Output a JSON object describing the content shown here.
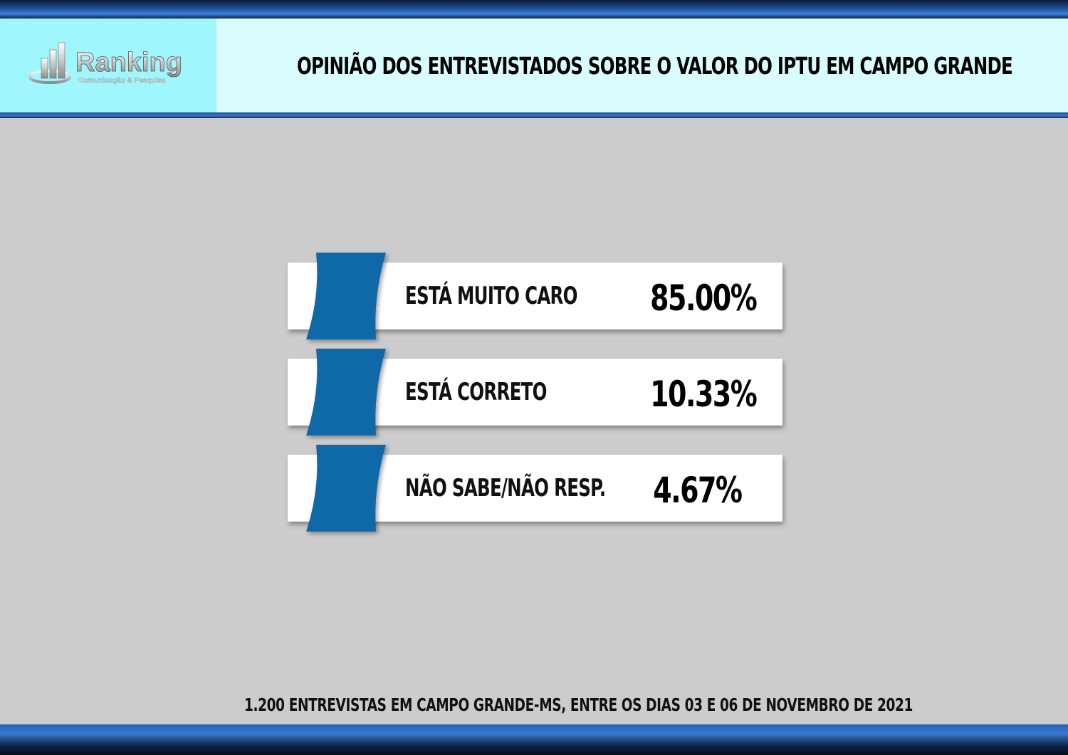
{
  "header": {
    "logo_text": "Ranking",
    "logo_subtitle": "Comunicação & Pesquisa",
    "title": "OPINIÃO DOS ENTREVISTADOS SOBRE O VALOR DO IPTU EM CAMPO GRANDE"
  },
  "colors": {
    "accent_blue": "#0f68a8",
    "header_bg": "#d9fdff",
    "logo_panel_bg": "#a0f6fd",
    "page_bg": "#cccccc"
  },
  "chart_data": {
    "type": "table",
    "title": "OPINIÃO DOS ENTREVISTADOS SOBRE O VALOR DO IPTU EM CAMPO GRANDE",
    "categories": [
      "ESTÁ MUITO CARO",
      "ESTÁ CORRETO",
      "NÃO SABE/NÃO RESP."
    ],
    "values": [
      85.0,
      10.33,
      4.67
    ],
    "value_labels": [
      "85.00%",
      "10.33%",
      "4.67%"
    ],
    "unit": "%"
  },
  "footer": {
    "note": "1.200 ENTREVISTAS EM CAMPO GRANDE-MS, ENTRE OS  DIAS 03 E 06 DE NOVEMBRO DE 2021"
  }
}
